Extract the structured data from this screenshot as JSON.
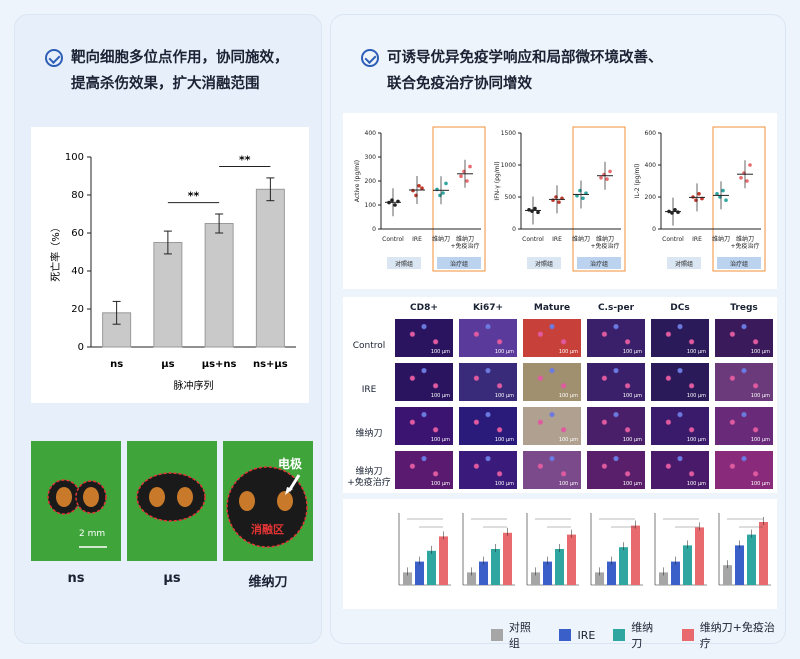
{
  "left_panel": {
    "heading_line1": "靶向细胞多位点作用，协同施效，",
    "heading_line2": "提高杀伤效果，扩大消融范围",
    "chart": {
      "ylabel": "死亡率（%）",
      "xlabel": "脉冲序列",
      "sig1": "**",
      "sig2": "**"
    },
    "ablation_images": {
      "labels": [
        "ns",
        "μs",
        "维纳刀"
      ],
      "scale_label": "2 mm",
      "electrode_label": "电极",
      "ablation_label": "消融区"
    }
  },
  "right_panel": {
    "heading_line1": "可诱导优异免疫学响应和局部微环境改善、",
    "heading_line2": "联合免疫治疗协同增效",
    "scatter_plots": [
      {
        "ylabel": "Active (pg/ml)",
        "yticks": [
          "0",
          "100",
          "200",
          "300",
          "400"
        ]
      },
      {
        "ylabel": "IFN-γ (pg/ml)",
        "yticks": [
          "0",
          "500",
          "1000",
          "1500"
        ]
      },
      {
        "ylabel": "IL-2 (pg/ml)",
        "yticks": [
          "0",
          "200",
          "400",
          "600"
        ]
      }
    ],
    "scatter_categories": [
      "Control",
      "IRE",
      "维纳刀",
      "维纳刀\n+免疫治疗"
    ],
    "group_labels": {
      "control": "对照组",
      "treatment": "治疗组"
    },
    "grid": {
      "columns": [
        "CD8+",
        "Ki67+",
        "Mature",
        "C.s-per",
        "DCs",
        "Tregs"
      ],
      "rows": [
        "Control",
        "IRE",
        "维纳刀",
        "维纳刀\n+免疫治疗"
      ],
      "scale_label": "100 μm"
    },
    "legend": [
      "对照组",
      "IRE",
      "维纳刀",
      "维纳刀+免疫治疗"
    ],
    "legend_colors": [
      "#a6a6a6",
      "#3a5fc9",
      "#2fa6a0",
      "#e86a6e"
    ]
  },
  "chart_data": {
    "type": "bar",
    "categories": [
      "ns",
      "μs",
      "μs+ns",
      "ns+μs"
    ],
    "values": [
      18,
      55,
      65,
      83
    ],
    "errors": [
      6,
      6,
      5,
      6
    ],
    "xlabel": "脉冲序列",
    "ylabel": "死亡率（%）",
    "ylim": [
      0,
      100
    ],
    "yticks": [
      0,
      20,
      40,
      60,
      80,
      100
    ],
    "significance": [
      {
        "from": "μs",
        "to": "μs+ns",
        "label": "**"
      },
      {
        "from": "μs+ns",
        "to": "ns+μs",
        "label": "**"
      }
    ]
  }
}
